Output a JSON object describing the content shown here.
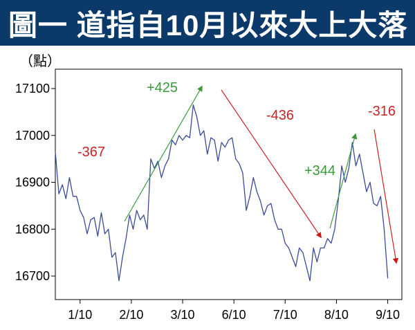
{
  "title": "圖一  道指自10月以來大上大落",
  "chart_data": {
    "type": "line",
    "ylabel": "（點）",
    "ylim": [
      16650,
      17150
    ],
    "yticks": [
      16700,
      16800,
      16900,
      17000,
      17100
    ],
    "xtick_labels": [
      "1/10",
      "2/10",
      "3/10",
      "6/10",
      "7/10",
      "8/10",
      "9/10"
    ],
    "x_range": [
      0,
      98
    ],
    "xtick_positions": [
      7,
      21.5,
      36,
      50.5,
      65,
      79.5,
      94
    ],
    "series": [
      {
        "color": "#3a4a9a",
        "values": [
          16965,
          16875,
          16895,
          16865,
          16910,
          16870,
          16870,
          16840,
          16825,
          16790,
          16820,
          16825,
          16785,
          16835,
          16790,
          16800,
          16740,
          16750,
          16690,
          16740,
          16780,
          16830,
          16800,
          16840,
          16820,
          16830,
          16800,
          16950,
          16930,
          16945,
          16910,
          16935,
          16950,
          16990,
          16980,
          17000,
          16990,
          17000,
          16995,
          17065,
          17040,
          17000,
          17010,
          16960,
          16995,
          16990,
          16945,
          16985,
          16975,
          16990,
          16995,
          16950,
          16940,
          16920,
          16840,
          16870,
          16910,
          16880,
          16860,
          16830,
          16850,
          16855,
          16820,
          16800,
          16800,
          16770,
          16760,
          16740,
          16720,
          16760,
          16750,
          16720,
          16690,
          16760,
          16730,
          16760,
          16760,
          16780,
          16770,
          16800,
          16860,
          16935,
          16900,
          16930,
          16985,
          16935,
          16960,
          16920,
          16880,
          16900,
          16855,
          16850,
          16870,
          16800,
          16695
        ]
      }
    ],
    "annotations": [
      {
        "text": "-367",
        "color": "#cc2222"
      },
      {
        "text": "+425",
        "color": "#3a9a3a"
      },
      {
        "text": "-436",
        "color": "#cc2222"
      },
      {
        "text": "+344",
        "color": "#3a9a3a"
      },
      {
        "text": "-316",
        "color": "#cc2222"
      }
    ],
    "grid": false
  }
}
